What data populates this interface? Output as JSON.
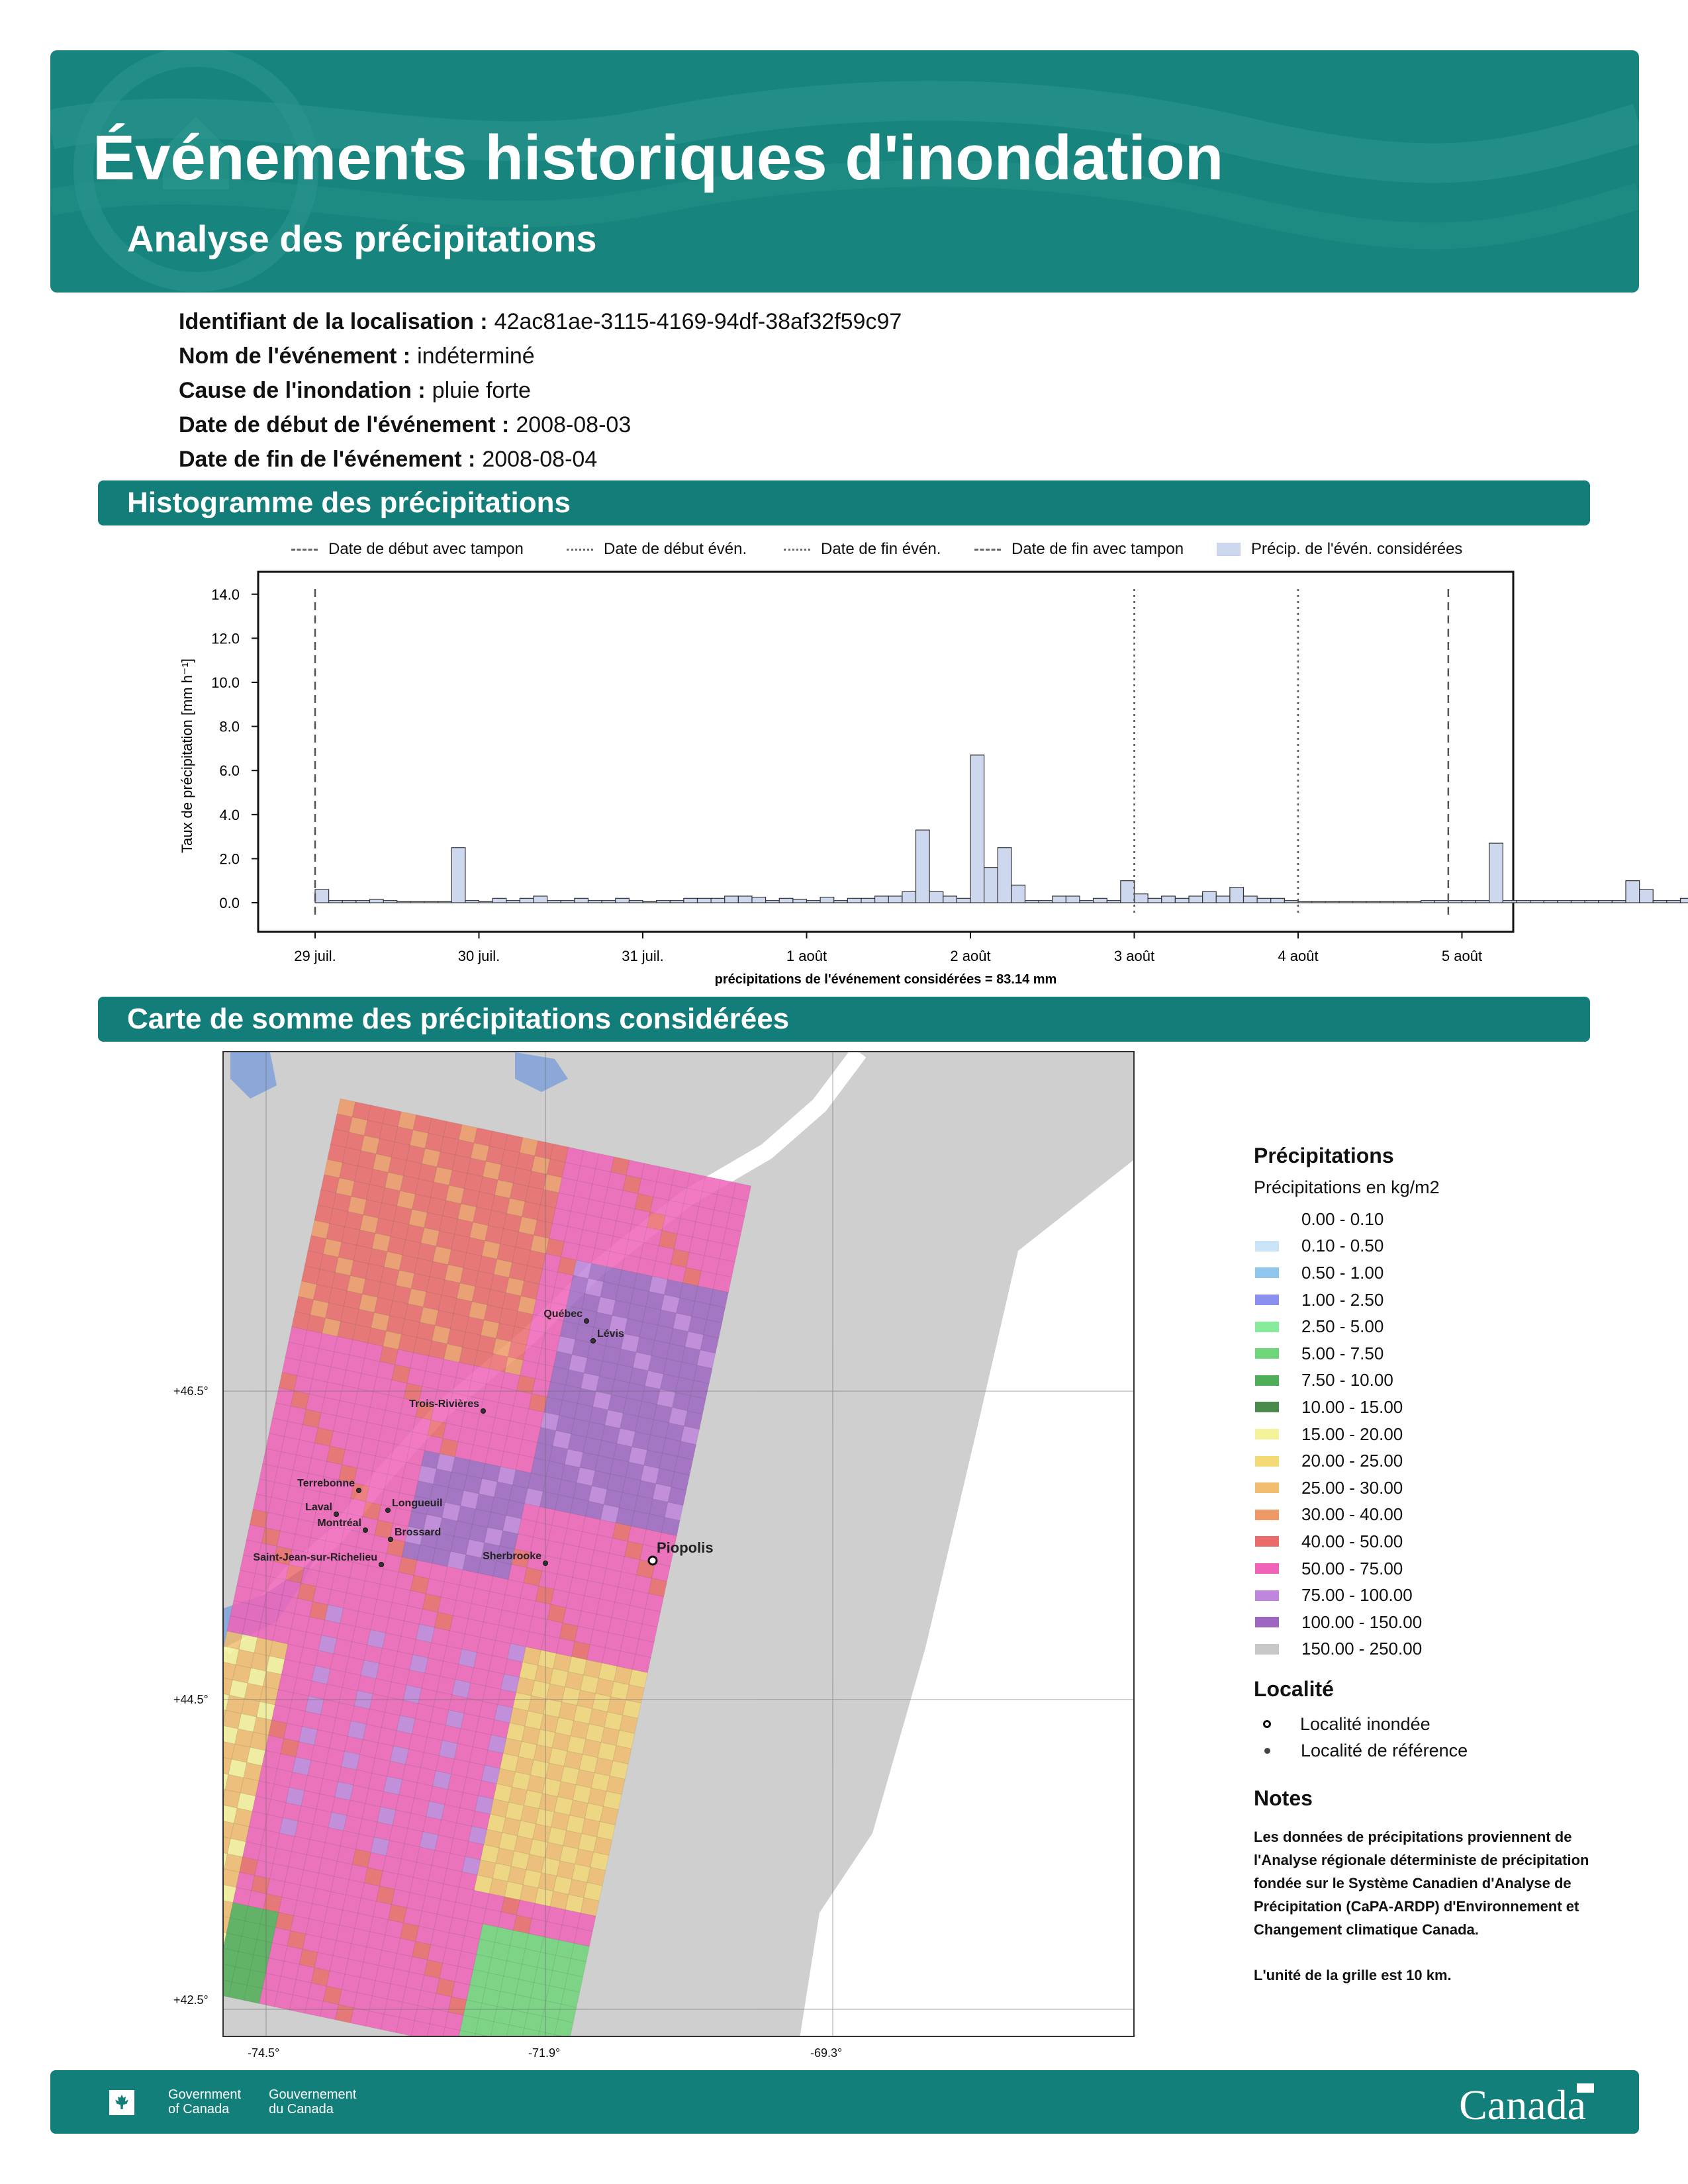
{
  "header": {
    "title": "Événements historiques d'inondation",
    "subtitle": "Analyse des précipitations"
  },
  "event": {
    "fields": [
      {
        "label": "Identifiant de la localisation :",
        "value": "42ac81ae-3115-4169-94df-38af32f59c97"
      },
      {
        "label": "Nom de l'événement :",
        "value": "indéterminé"
      },
      {
        "label": "Cause de l'inondation :",
        "value": "pluie forte"
      },
      {
        "label": "Date de début de l'événement :",
        "value": "2008-08-03"
      },
      {
        "label": "Date de fin de l'événement :",
        "value": "2008-08-04"
      }
    ]
  },
  "sections": {
    "histogram": "Histogramme des précipitations",
    "map": "Carte de somme des précipitations considérées"
  },
  "chart_legend": {
    "buffer_start": "Date de début avec tampon",
    "event_start": "Date de début évén.",
    "event_end": "Date de fin évén.",
    "buffer_end": "Date de fin avec tampon",
    "considered": "Précip. de l'évén. considérées"
  },
  "chart_data": {
    "type": "bar",
    "ylabel": "Taux de précipitation [mm h⁻¹]",
    "xlabel": "précipitations de l'événement considérées = 83.14 mm",
    "ylim": [
      -0.8,
      15.2
    ],
    "yticks": [
      "0.0",
      "2.0",
      "4.0",
      "6.0",
      "8.0",
      "10.0",
      "12.0",
      "14.0"
    ],
    "xticks": [
      "29 juil.",
      "30 juil.",
      "31 juil.",
      "1 août",
      "2 août",
      "3 août",
      "4 août",
      "5 août"
    ],
    "x_start": "2008-07-29 00:00",
    "bin_hours": 2,
    "buffer_start": "2008-07-29 00:00",
    "event_start": "2008-08-03 00:00",
    "event_end": "2008-08-04 00:00",
    "buffer_end": "2008-08-04 22:00",
    "values": [
      0.6,
      0.1,
      0.1,
      0.1,
      0.15,
      0.1,
      0.05,
      0.05,
      0.05,
      0.05,
      0.1,
      0.1,
      0.05,
      0.2,
      0.1,
      0.2,
      0.3,
      0.1,
      0.1,
      0.2,
      0.1,
      0.1,
      0.2,
      0.1,
      0.05,
      0.1,
      0.1,
      0.2,
      0.2,
      0.2,
      0.3,
      0.3,
      0.25,
      0.1,
      0.2,
      0.15,
      0.1,
      0.25,
      0.1,
      0.2,
      0.2,
      0.3,
      0.3,
      0.5,
      0.4,
      0.5,
      0.3,
      0.2,
      0.1,
      0.05,
      0.05,
      0.05,
      0.1,
      0.1,
      0.3,
      0.3,
      0.1,
      0.2,
      0.1,
      0.3,
      0.5,
      0.2,
      0.3,
      0.2,
      0.3,
      0.5,
      0.3,
      0.7,
      0.3,
      0.2,
      0.2,
      0.1,
      0.05,
      0.05,
      0.05,
      0.05,
      0.05,
      0.05,
      0.05,
      0.05,
      0.05,
      0.1,
      0.1,
      0.1,
      0.1,
      0.1,
      0.1,
      0.1,
      0.1,
      0.1,
      0.1,
      0.1,
      0.1,
      0.1,
      0.1,
      0.1,
      0.1,
      0.1,
      0.1,
      0.1,
      0.2,
      1.2,
      0.5,
      0.7,
      1.0,
      0.3,
      0.2,
      0.3,
      0.3,
      0.2,
      0.1,
      0.2,
      0.3,
      0.2,
      0.2,
      0.1,
      0.1,
      0.1,
      0.1,
      0.1,
      0.05,
      0.1,
      0.05,
      0.1,
      0.1,
      0.05,
      0.05,
      0.05,
      0.1,
      0.1,
      0.1,
      0.3,
      0.4,
      0.5,
      0.3,
      0.2,
      0.2,
      0.1,
      0.2,
      0.1,
      0.2,
      0.3,
      0.3,
      0.4,
      0.5,
      0.7,
      0.8,
      0.6,
      0.4,
      0.3,
      0.2,
      0.3,
      0.1,
      0.1,
      0.1,
      0.1,
      0.2,
      0.3,
      0.4,
      0.3,
      0.3,
      0.5,
      0.4,
      0.4,
      0.3,
      0.3,
      0.2,
      0.2,
      0.3,
      0.4,
      0.3,
      0.1,
      0.1,
      0.05,
      0.05,
      0.1,
      0.1,
      0.1,
      0.2,
      0.3,
      0.3,
      0.5,
      0.3,
      0.5,
      0.4,
      0.5,
      0.5,
      0.8
    ]
  },
  "map": {
    "lat_labels": [
      "+46.5°",
      "+44.5°",
      "+42.5°"
    ],
    "lon_labels": [
      "-74.5°",
      "-71.9°",
      "-69.3°"
    ],
    "cities": [
      {
        "name": "Québec"
      },
      {
        "name": "Lévis"
      },
      {
        "name": "Trois-Rivières"
      },
      {
        "name": "Terrebonne"
      },
      {
        "name": "Laval"
      },
      {
        "name": "Montréal"
      },
      {
        "name": "Longueuil"
      },
      {
        "name": "Brossard"
      },
      {
        "name": "Saint-Jean-sur-Richelieu"
      },
      {
        "name": "Sherbrooke"
      },
      {
        "name": "Piopolis"
      }
    ]
  },
  "map_legend": {
    "title": "Précipitations",
    "subtitle": "Précipitations en kg/m2",
    "classes": [
      {
        "range": "0.00 - 0.10",
        "color": "#ffffff"
      },
      {
        "range": "0.10 - 0.50",
        "color": "#c9e4f7"
      },
      {
        "range": "0.50 - 1.00",
        "color": "#8fc6ee"
      },
      {
        "range": "1.00 - 2.50",
        "color": "#8b8ff0"
      },
      {
        "range": "2.50 - 5.00",
        "color": "#86ec9c"
      },
      {
        "range": "5.00 - 7.50",
        "color": "#6fd67a"
      },
      {
        "range": "7.50 - 10.00",
        "color": "#4fae57"
      },
      {
        "range": "10.00 - 15.00",
        "color": "#4a8a4c"
      },
      {
        "range": "15.00 - 20.00",
        "color": "#f5f39a"
      },
      {
        "range": "20.00 - 25.00",
        "color": "#f4d977"
      },
      {
        "range": "25.00 - 30.00",
        "color": "#f2bd6e"
      },
      {
        "range": "30.00 - 40.00",
        "color": "#ef9a66"
      },
      {
        "range": "40.00 - 50.00",
        "color": "#eb6a6a"
      },
      {
        "range": "50.00 - 75.00",
        "color": "#ef63b9"
      },
      {
        "range": "75.00 - 100.00",
        "color": "#c086dd"
      },
      {
        "range": "100.00 - 150.00",
        "color": "#9d67c1"
      },
      {
        "range": "150.00 - 250.00",
        "color": "#c8c8c8"
      }
    ],
    "locality_title": "Localité",
    "flooded": "Localité inondée",
    "reference": "Localité de référence",
    "notes_title": "Notes",
    "notes_text": "Les données de précipitations proviennent de l'Analyse régionale déterministe de précipitation fondée sur le Système Canadien d'Analyse de Précipitation (CaPA-ARDP) d'Environnement et Changement climatique Canada.",
    "notes_unit": "L'unité de la grille est 10 km."
  },
  "footer": {
    "gov_en": "Government\nof Canada",
    "gov_fr": "Gouvernement\ndu Canada",
    "wordmark": "Canada"
  }
}
